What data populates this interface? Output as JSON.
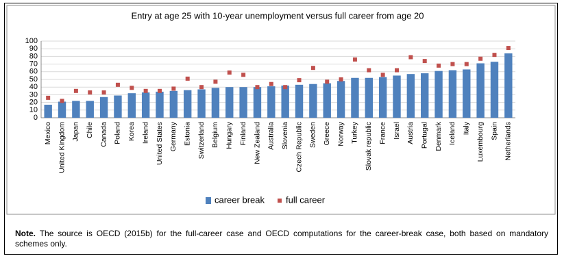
{
  "chart_data": {
    "type": "bar",
    "title": "Entry at age 25 with 10-year unemployment versus full career from age 20",
    "categories": [
      "Mexico",
      "United Kingdom",
      "Japan",
      "Chile",
      "Canada",
      "Poland",
      "Korea",
      "Ireland",
      "United States",
      "Germany",
      "Estonia",
      "Switzerland",
      "Belgium",
      "Hungary",
      "Finland",
      "New Zealand",
      "Australia",
      "Slovenia",
      "Czech Republic",
      "Sweden",
      "Greece",
      "Norway",
      "Turkey",
      "Slovak republic",
      "France",
      "Israel",
      "Austria",
      "Portugal",
      "Denmark",
      "Iceland",
      "Italy",
      "Luxembourg",
      "Spain",
      "Netherlands"
    ],
    "series": [
      {
        "name": "career break",
        "color": "#4f81bd",
        "type": "bar",
        "values": [
          17,
          21,
          22,
          22,
          27,
          29,
          32,
          33,
          34,
          35,
          36,
          37,
          39,
          40,
          40,
          40,
          41,
          42,
          43,
          44,
          45,
          48,
          52,
          52,
          53,
          55,
          57,
          58,
          61,
          62,
          63,
          71,
          73,
          84
        ]
      },
      {
        "name": "full career",
        "color": "#c0504d",
        "type": "scatter",
        "values": [
          26,
          22,
          35,
          33,
          33,
          43,
          39,
          35,
          35,
          38,
          51,
          40,
          47,
          59,
          56,
          40,
          44,
          40,
          49,
          65,
          47,
          50,
          76,
          62,
          56,
          62,
          79,
          74,
          68,
          70,
          70,
          77,
          82,
          91
        ]
      }
    ],
    "ylim": [
      0,
      100
    ],
    "yticks": [
      0,
      10,
      20,
      30,
      40,
      50,
      60,
      70,
      80,
      90,
      100
    ],
    "grid": true,
    "legend": "bottom",
    "note_label": "Note.",
    "note": "The source is OECD (2015b) for the full-career case and OECD computations for the career-break case, both based on mandatory schemes only."
  }
}
